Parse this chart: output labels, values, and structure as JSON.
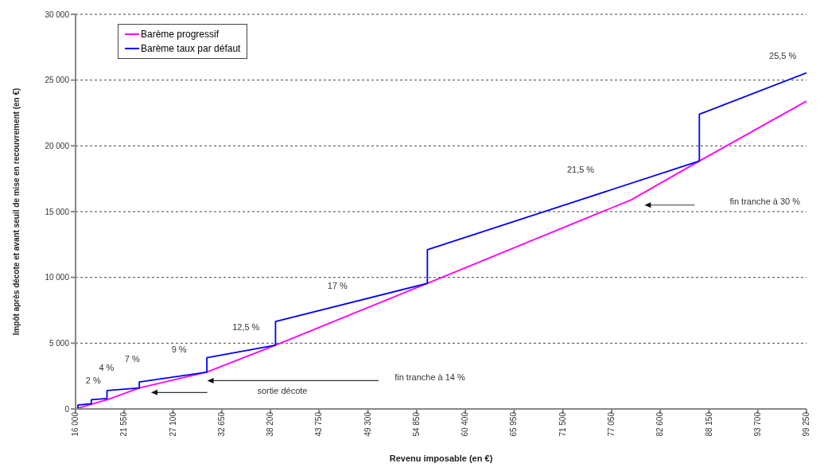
{
  "chart_data": {
    "type": "line",
    "xlabel": "Revenu imposable (en €)",
    "ylabel": "Impôt après décote et avant seuil de mise en recouvrement (en €)",
    "xlim": [
      16000,
      99250
    ],
    "xticks": [
      16000,
      21550,
      27100,
      32650,
      38200,
      43750,
      49300,
      54850,
      60400,
      65950,
      71500,
      77050,
      82600,
      88150,
      93700,
      99250
    ],
    "ylim": [
      0,
      30000
    ],
    "yticks": [
      0,
      5000,
      10000,
      15000,
      20000,
      25000,
      30000
    ],
    "grid": "y",
    "legend": "top left",
    "marker": "none",
    "line_style": "solid",
    "series": [
      {
        "name": "Barème progressif",
        "color": "#ff00ff",
        "x": [
          16000,
          19800,
          23259,
          30954,
          38773,
          56071,
          79300,
          87045,
          99250
        ],
        "values": [
          0,
          750,
          1600,
          2800,
          4850,
          9550,
          15900,
          18850,
          23400
        ]
      },
      {
        "name": "Barème taux par défaut",
        "color": "#0000ff",
        "x": [
          16000,
          16267,
          16267,
          17804,
          17804,
          19581,
          19581,
          23259,
          23259,
          30954,
          30954,
          38773,
          38773,
          56071,
          56071,
          87045,
          87045,
          99250
        ],
        "values": [
          0,
          0,
          300,
          400,
          700,
          800,
          1400,
          1600,
          2050,
          2800,
          3900,
          4850,
          6650,
          9550,
          12100,
          18850,
          22400,
          25550
        ]
      }
    ],
    "annotations": [
      "2 %",
      "4 %",
      "7 %",
      "9 %",
      "12,5 %",
      "17 %",
      "21,5 %",
      "25,5 %",
      "sortie décote",
      "fin tranche à 14 %",
      "fin tranche à 30 %"
    ]
  }
}
